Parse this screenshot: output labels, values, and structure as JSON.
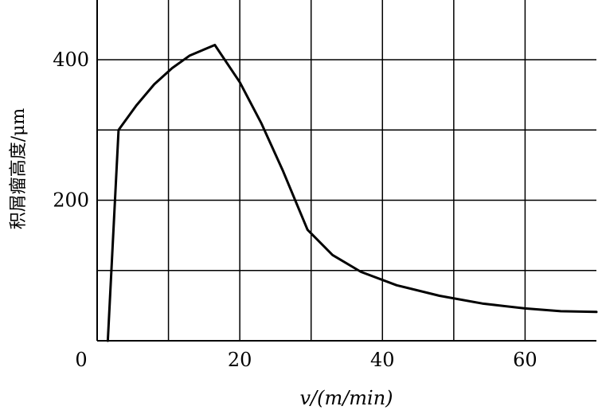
{
  "chart_data": {
    "type": "line",
    "title": "",
    "xlabel": "v/(m/min)",
    "ylabel": "积屑瘤高度/μm",
    "xlim": [
      0,
      70
    ],
    "ylim": [
      0,
      485
    ],
    "x_ticks": [
      0,
      10,
      20,
      30,
      40,
      50,
      60,
      70
    ],
    "x_tick_labels": [
      "0",
      "",
      "20",
      "",
      "40",
      "",
      "60",
      ""
    ],
    "y_ticks": [
      0,
      100,
      200,
      300,
      400
    ],
    "y_tick_labels": [
      "",
      "",
      "200",
      "",
      "400"
    ],
    "grid": true,
    "legend": "none",
    "colors": {
      "line": "#000000",
      "grid": "#000000",
      "background": "#ffffff"
    },
    "series": [
      {
        "x": [
          1.5,
          3.0,
          5.5,
          8.0,
          10.5,
          13.0,
          16.5,
          20.0,
          23.0,
          26.0,
          29.5,
          33.0,
          37.0,
          42.0,
          48.0,
          54.0,
          60.0,
          65.0,
          70.0
        ],
        "y": [
          0,
          300,
          335,
          365,
          388,
          406,
          421,
          368,
          310,
          243,
          158,
          122,
          98,
          79,
          64,
          53,
          46,
          42,
          41
        ]
      }
    ]
  }
}
